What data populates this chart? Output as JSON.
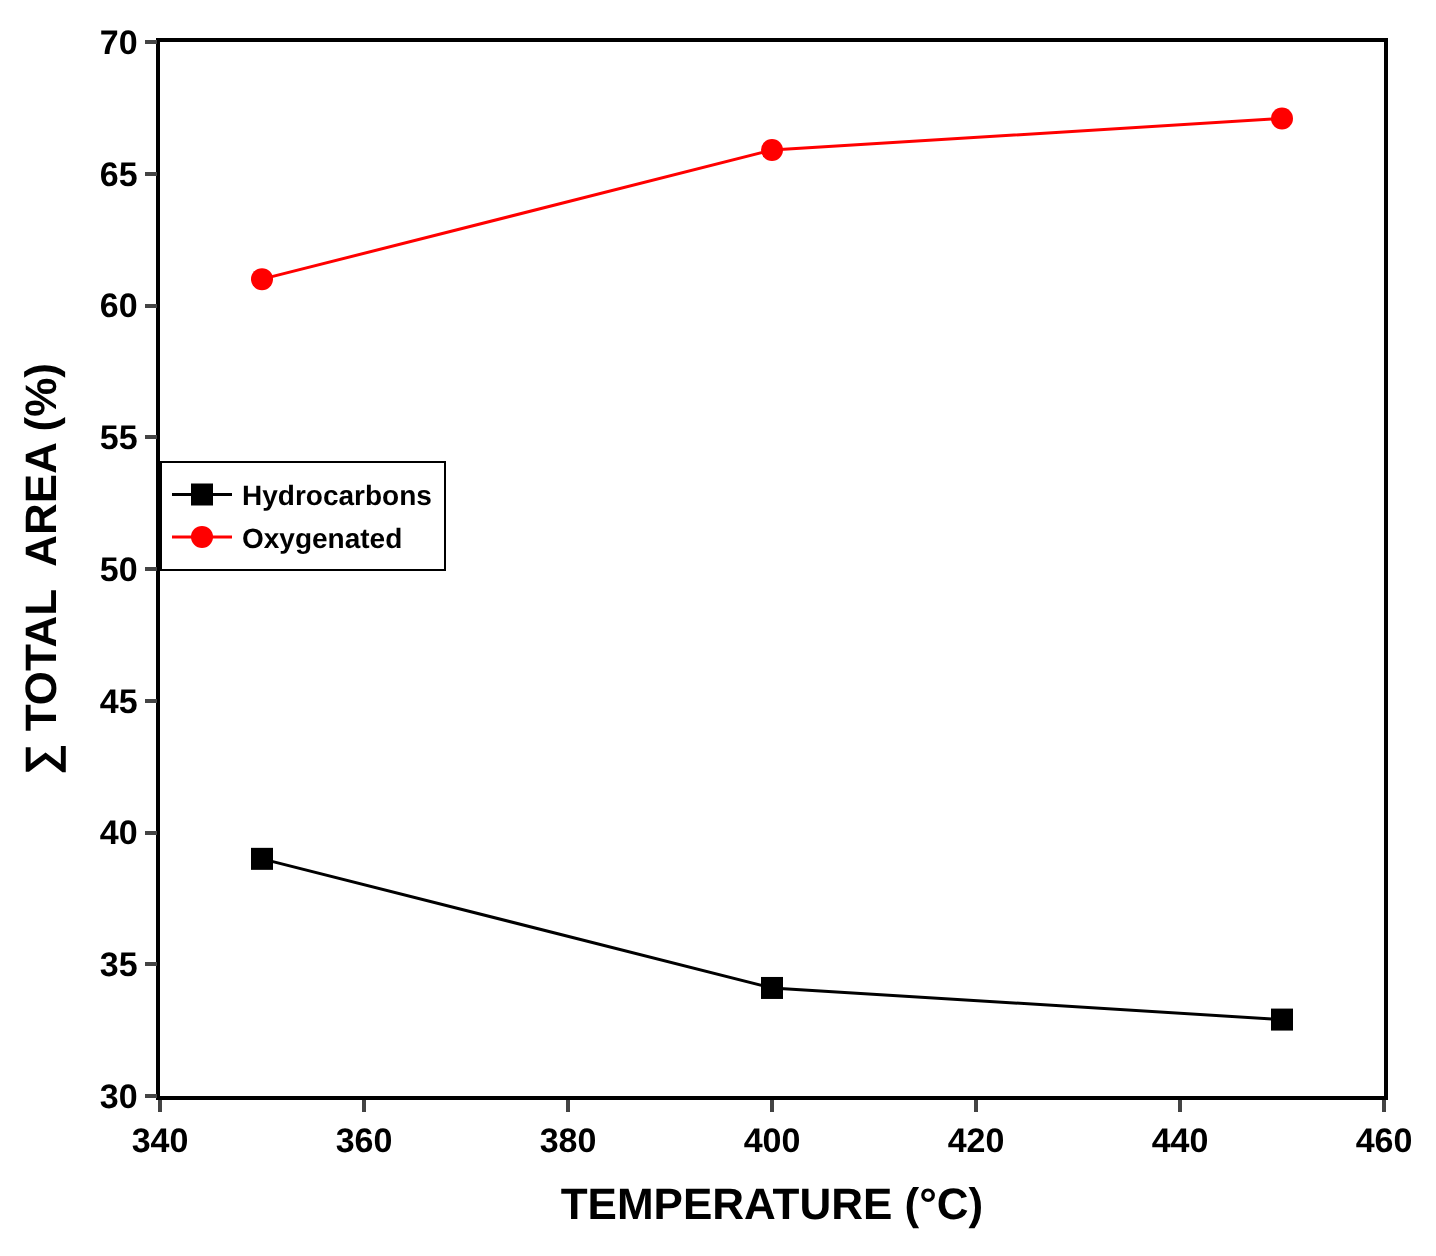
{
  "chart_data": {
    "type": "line",
    "xlabel": "TEMPERATURE (°C)",
    "ylabel": "∑ TOTAL  AREA (%)",
    "x": [
      350,
      400,
      450
    ],
    "series": [
      {
        "name": "Hydrocarbons",
        "color": "#000000",
        "values": [
          39.0,
          34.1,
          32.9
        ],
        "marker": "square"
      },
      {
        "name": "Oxygenated",
        "color": "#ff0000",
        "values": [
          61.0,
          65.9,
          67.1
        ],
        "marker": "circle"
      }
    ],
    "xlim": [
      340,
      460
    ],
    "xticks": [
      340,
      360,
      380,
      400,
      420,
      440,
      460
    ],
    "ylim": [
      30,
      70
    ],
    "yticks": [
      30,
      35,
      40,
      45,
      50,
      55,
      60,
      65,
      70
    ],
    "legend": "left",
    "line_style": "solid"
  }
}
